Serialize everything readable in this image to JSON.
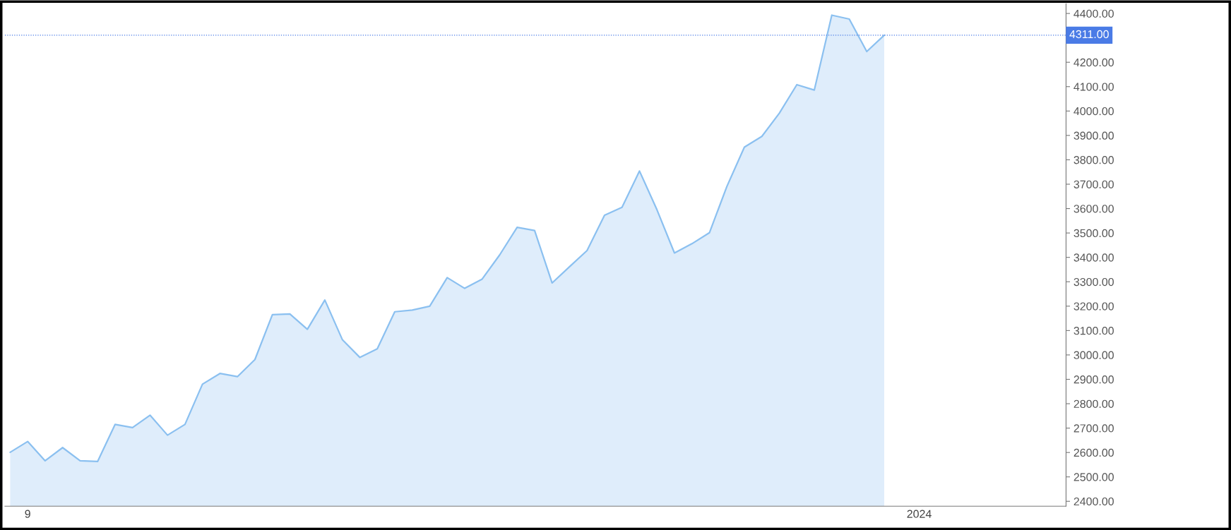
{
  "chart_data": {
    "type": "area",
    "categories": [
      null,
      "9",
      null,
      null,
      null,
      null,
      null,
      null,
      null,
      null,
      null,
      null,
      null,
      null,
      null,
      null,
      null,
      null,
      null,
      null,
      null,
      null,
      null,
      null,
      null,
      null,
      null,
      null,
      null,
      null,
      null,
      null,
      null,
      null,
      null,
      null,
      null,
      null,
      null,
      null,
      null,
      null,
      null,
      null,
      null,
      null,
      null,
      null,
      null,
      null,
      null,
      null,
      "2024",
      null,
      null,
      null,
      null,
      null,
      null,
      null,
      null
    ],
    "series": [
      {
        "color": "#8bc0f0",
        "values": [
          2601,
          2645,
          2566,
          2620,
          2566,
          2563,
          2715,
          2702,
          2753,
          2671,
          2715,
          2880,
          2924,
          2911,
          2981,
          3165,
          3168,
          3105,
          3225,
          3063,
          2990,
          3025,
          3177,
          3184,
          3200,
          3317,
          3273,
          3311,
          3410,
          3523,
          3510,
          3295,
          3362,
          3428,
          3573,
          3605,
          3754,
          3595,
          3418,
          3456,
          3501,
          3691,
          3852,
          3896,
          3991,
          4108,
          4086,
          4393,
          4377,
          4244,
          4311,
          null,
          null,
          null,
          null,
          null,
          null,
          null,
          null,
          null,
          null
        ]
      }
    ],
    "ylim": [
      2380,
      4440
    ],
    "yticks": [
      {
        "value": 2400,
        "label": "2400.00"
      },
      {
        "value": 2500,
        "label": "2500.00"
      },
      {
        "value": 2600,
        "label": "2600.00"
      },
      {
        "value": 2700,
        "label": "2700.00"
      },
      {
        "value": 2800,
        "label": "2800.00"
      },
      {
        "value": 2900,
        "label": "2900.00"
      },
      {
        "value": 3000,
        "label": "3000.00"
      },
      {
        "value": 3100,
        "label": "3100.00"
      },
      {
        "value": 3200,
        "label": "3200.00"
      },
      {
        "value": 3300,
        "label": "3300.00"
      },
      {
        "value": 3400,
        "label": "3400.00"
      },
      {
        "value": 3500,
        "label": "3500.00"
      },
      {
        "value": 3600,
        "label": "3600.00"
      },
      {
        "value": 3700,
        "label": "3700.00"
      },
      {
        "value": 3800,
        "label": "3800.00"
      },
      {
        "value": 3900,
        "label": "3900.00"
      },
      {
        "value": 4000,
        "label": "4000.00"
      },
      {
        "value": 4100,
        "label": "4100.00"
      },
      {
        "value": 4200,
        "label": "4200.00"
      },
      {
        "value": 4300,
        "label": null
      },
      {
        "value": 4400,
        "label": "4400.00"
      }
    ],
    "ref_lines": [
      {
        "axis": "y",
        "value": 4311,
        "label": "4311.00",
        "color": "#4a7be6",
        "line_style": "dotted"
      }
    ],
    "grid": false
  }
}
